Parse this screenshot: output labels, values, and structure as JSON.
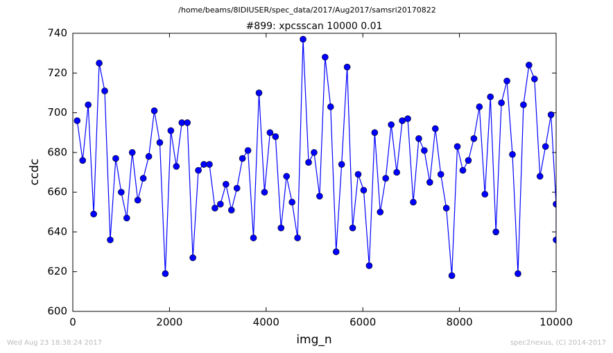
{
  "chart_data": {
    "type": "line",
    "suptitle": "/home/beams/8IDIUSER/spec_data/2017/Aug2017/samsri20170822",
    "title": "#899: xpcsscan 10000 0.01",
    "xlabel": "img_n",
    "ylabel": "ccdc",
    "footer_left": "Wed Aug 23 18:38:24 2017",
    "footer_right": "spec2nexus, (C) 2014-2017",
    "x": [
      90,
      204,
      318,
      432,
      546,
      660,
      774,
      888,
      1002,
      1116,
      1230,
      1344,
      1458,
      1572,
      1686,
      1800,
      1914,
      2028,
      2142,
      2256,
      2370,
      2484,
      2598,
      2712,
      2826,
      2940,
      3054,
      3168,
      3282,
      3396,
      3510,
      3624,
      3738,
      3852,
      3966,
      4080,
      4194,
      4308,
      4422,
      4536,
      4650,
      4764,
      4878,
      4992,
      5106,
      5220,
      5334,
      5448,
      5562,
      5676,
      5790,
      5904,
      6018,
      6132,
      6246,
      6360,
      6474,
      6588,
      6702,
      6816,
      6930,
      7044,
      7158,
      7272,
      7386,
      7500,
      7614,
      7728,
      7842,
      7956,
      8070,
      8184,
      8298,
      8412,
      8526,
      8640,
      8754,
      8868,
      8982,
      9096,
      9210,
      9324,
      9438,
      9552,
      9666,
      9780,
      9894,
      10000,
      10000
    ],
    "series": [
      {
        "color": "#0000ff",
        "values": [
          696,
          676,
          704,
          649,
          725,
          711,
          636,
          677,
          660,
          647,
          680,
          656,
          667,
          678,
          701,
          685,
          619,
          691,
          673,
          695,
          695,
          627,
          671,
          674,
          674,
          652,
          654,
          664,
          651,
          662,
          677,
          681,
          637,
          710,
          660,
          690,
          688,
          642,
          668,
          655,
          637,
          737,
          675,
          680,
          658,
          728,
          703,
          630,
          674,
          723,
          642,
          669,
          661,
          623,
          690,
          650,
          667,
          694,
          670,
          696,
          697,
          655,
          687,
          681,
          665,
          692,
          669,
          652,
          618,
          683,
          671,
          676,
          687,
          703,
          659,
          708,
          640,
          705,
          716,
          679,
          619,
          704,
          724,
          717,
          668,
          683,
          699,
          654,
          636
        ]
      }
    ],
    "xlim": [
      0,
      10000
    ],
    "xticks": [
      0,
      2000,
      4000,
      6000,
      8000,
      10000
    ],
    "ylim": [
      600,
      740
    ],
    "yticks": [
      600,
      620,
      640,
      660,
      680,
      700,
      720,
      740
    ]
  }
}
